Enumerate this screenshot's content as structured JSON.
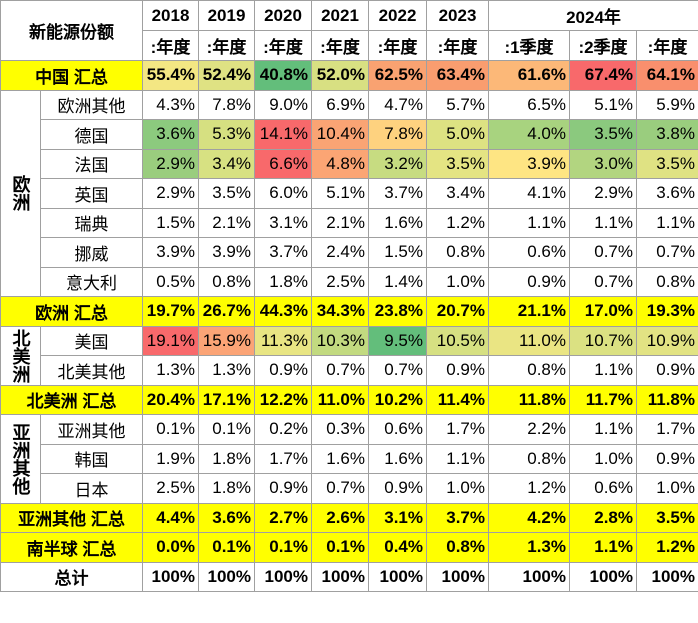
{
  "table": {
    "title": "新能源份额",
    "years": [
      {
        "label": "2018",
        "periods": [
          ":年度"
        ]
      },
      {
        "label": "2019",
        "periods": [
          ":年度"
        ]
      },
      {
        "label": "2020",
        "periods": [
          ":年度"
        ]
      },
      {
        "label": "2021",
        "periods": [
          ":年度"
        ]
      },
      {
        "label": "2022",
        "periods": [
          ":年度"
        ]
      },
      {
        "label": "2023",
        "periods": [
          ":年度"
        ]
      },
      {
        "label": "2024年",
        "periods": [
          ":1季度",
          ":2季度",
          ":年度"
        ]
      }
    ],
    "body": [
      {
        "label": "中国 汇总",
        "fill": "#ffff00",
        "cells": [
          "55.4%",
          "52.4%",
          "40.8%",
          "52.0%",
          "62.5%",
          "63.4%",
          "61.6%",
          "67.4%",
          "64.1%"
        ],
        "cell_fills": [
          "#f3e783",
          "#dfe283",
          "#63be7b",
          "#d8e082",
          "#f9a271",
          "#f99d6f",
          "#fcb878",
          "#f8696b",
          "#f98f6d"
        ]
      },
      {
        "group": "欧洲",
        "rows": [
          {
            "label": "欧洲其他",
            "cells": [
              "4.3%",
              "7.8%",
              "9.0%",
              "6.9%",
              "4.7%",
              "5.7%",
              "6.5%",
              "5.1%",
              "5.9%"
            ]
          },
          {
            "label": "德国",
            "cells": [
              "3.6%",
              "5.3%",
              "14.1%",
              "10.4%",
              "7.8%",
              "5.0%",
              "4.0%",
              "3.5%",
              "3.8%"
            ],
            "cell_fills": [
              "#8cca7e",
              "#d6e081",
              "#f8696b",
              "#faa474",
              "#fed27f",
              "#dde282",
              "#a8d37f",
              "#8bc97e",
              "#9acd7e"
            ]
          },
          {
            "label": "法国",
            "cells": [
              "2.9%",
              "3.4%",
              "6.6%",
              "4.8%",
              "3.2%",
              "3.5%",
              "3.9%",
              "3.0%",
              "3.5%"
            ],
            "cell_fills": [
              "#9acd7e",
              "#d7e182",
              "#f8696b",
              "#fba574",
              "#c7dc81",
              "#e4e483",
              "#fee583",
              "#b2d580",
              "#dfe283"
            ]
          },
          {
            "label": "英国",
            "cells": [
              "2.9%",
              "3.5%",
              "6.0%",
              "5.1%",
              "3.7%",
              "3.4%",
              "4.1%",
              "2.9%",
              "3.6%"
            ]
          },
          {
            "label": "瑞典",
            "cells": [
              "1.5%",
              "2.1%",
              "3.1%",
              "2.1%",
              "1.6%",
              "1.2%",
              "1.1%",
              "1.1%",
              "1.1%"
            ]
          },
          {
            "label": "挪威",
            "cells": [
              "3.9%",
              "3.9%",
              "3.7%",
              "2.4%",
              "1.5%",
              "0.8%",
              "0.6%",
              "0.7%",
              "0.7%"
            ]
          },
          {
            "label": "意大利",
            "cells": [
              "0.5%",
              "0.8%",
              "1.8%",
              "2.5%",
              "1.4%",
              "1.0%",
              "0.9%",
              "0.7%",
              "0.8%"
            ]
          }
        ]
      },
      {
        "label": "欧洲 汇总",
        "fill": "#ffff00",
        "cells": [
          "19.7%",
          "26.7%",
          "44.3%",
          "34.3%",
          "23.8%",
          "20.7%",
          "21.1%",
          "17.0%",
          "19.3%"
        ]
      },
      {
        "group": "北美洲",
        "rows": [
          {
            "label": "美国",
            "cells": [
              "19.1%",
              "15.9%",
              "11.3%",
              "10.3%",
              "9.5%",
              "10.5%",
              "11.0%",
              "10.7%",
              "10.9%"
            ],
            "cell_fills": [
              "#f8696b",
              "#fba476",
              "#e8e583",
              "#c2da80",
              "#63be7b",
              "#d6e082",
              "#eae583",
              "#dbe182",
              "#e2e383"
            ]
          },
          {
            "label": "北美其他",
            "cells": [
              "1.3%",
              "1.3%",
              "0.9%",
              "0.7%",
              "0.7%",
              "0.9%",
              "0.8%",
              "1.1%",
              "0.9%"
            ]
          }
        ]
      },
      {
        "label": "北美洲 汇总",
        "fill": "#ffff00",
        "cells": [
          "20.4%",
          "17.1%",
          "12.2%",
          "11.0%",
          "10.2%",
          "11.4%",
          "11.8%",
          "11.7%",
          "11.8%"
        ]
      },
      {
        "group": "亚洲其他",
        "rows": [
          {
            "label": "亚洲其他",
            "cells": [
              "0.1%",
              "0.1%",
              "0.2%",
              "0.3%",
              "0.6%",
              "1.7%",
              "2.2%",
              "1.1%",
              "1.7%"
            ]
          },
          {
            "label": "韩国",
            "cells": [
              "1.9%",
              "1.8%",
              "1.7%",
              "1.6%",
              "1.6%",
              "1.1%",
              "0.8%",
              "1.0%",
              "0.9%"
            ]
          },
          {
            "label": "日本",
            "cells": [
              "2.5%",
              "1.8%",
              "0.9%",
              "0.7%",
              "0.9%",
              "1.0%",
              "1.2%",
              "0.6%",
              "1.0%"
            ]
          }
        ]
      },
      {
        "label": "亚洲其他 汇总",
        "fill": "#ffff00",
        "cells": [
          "4.4%",
          "3.6%",
          "2.7%",
          "2.6%",
          "3.1%",
          "3.7%",
          "4.2%",
          "2.8%",
          "3.5%"
        ]
      },
      {
        "label": "南半球 汇总",
        "fill": "#ffff00",
        "cells": [
          "0.0%",
          "0.1%",
          "0.1%",
          "0.1%",
          "0.4%",
          "0.8%",
          "1.3%",
          "1.1%",
          "1.2%"
        ]
      },
      {
        "label": "总计",
        "cells": [
          "100%",
          "100%",
          "100%",
          "100%",
          "100%",
          "100%",
          "100%",
          "100%",
          "100%"
        ]
      }
    ]
  }
}
